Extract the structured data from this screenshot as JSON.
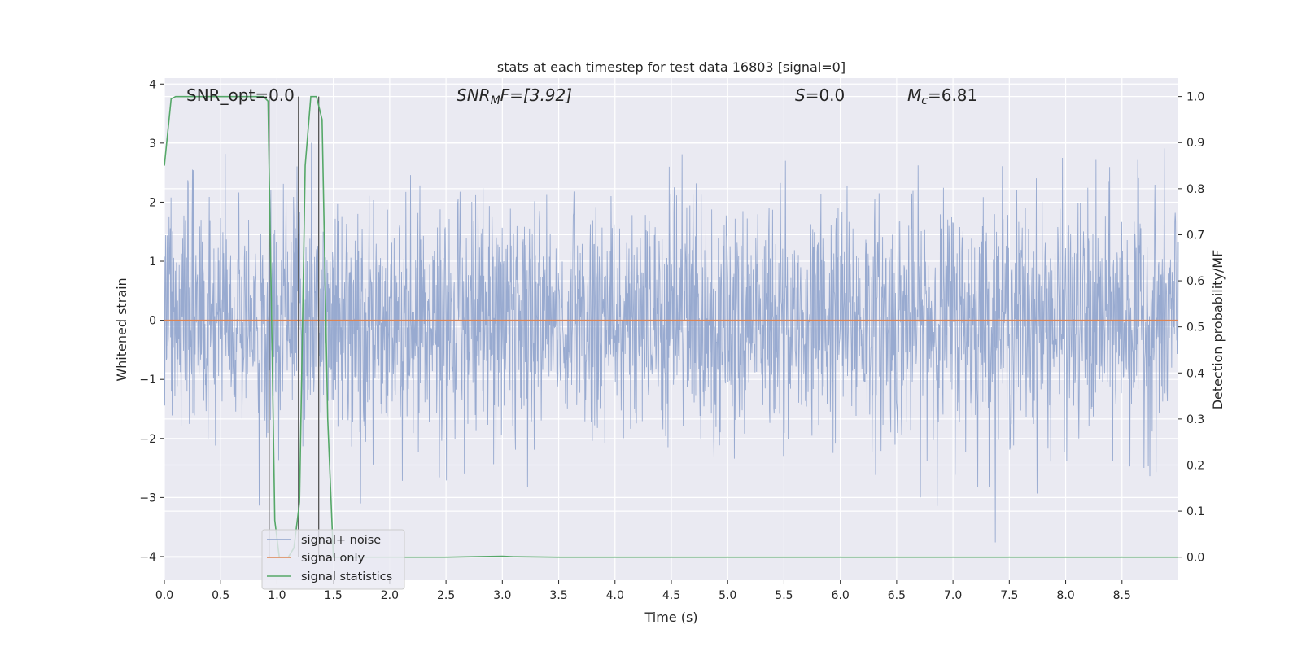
{
  "chart_data": {
    "type": "line",
    "title": "stats at each timestep for test data 16803 [signal=0]",
    "xlabel": "Time (s)",
    "ylabel": "Whitened strain",
    "y2label": "Detection probability/MF",
    "xlim": [
      0.0,
      9.0
    ],
    "ylim": [
      -4.4,
      4.1
    ],
    "y2lim": [
      -0.05,
      1.04
    ],
    "x_ticks": [
      "0.0",
      "0.5",
      "1.0",
      "1.5",
      "2.0",
      "2.5",
      "3.0",
      "3.5",
      "4.0",
      "4.5",
      "5.0",
      "5.5",
      "6.0",
      "6.5",
      "7.0",
      "7.5",
      "8.0",
      "8.5"
    ],
    "y_ticks": [
      "4",
      "3",
      "2",
      "1",
      "0",
      "−1",
      "−2",
      "−3",
      "−4"
    ],
    "y2_ticks": [
      "1.0",
      "0.9",
      "0.8",
      "0.7",
      "0.6",
      "0.5",
      "0.4",
      "0.3",
      "0.2",
      "0.1",
      "0.0"
    ],
    "grid": true,
    "legend_position": "lower-left",
    "series": [
      {
        "name": "signal+ noise",
        "color": "#8fa3cc",
        "kind": "noise-strain",
        "sigma": 1.0,
        "range": [
          -4.0,
          3.8
        ]
      },
      {
        "name": "signal only",
        "color": "#dd8452",
        "x": [
          0.0,
          9.0
        ],
        "y": [
          0.0,
          0.0
        ]
      },
      {
        "name": "signal statistics",
        "color": "#55a868",
        "axis": "right",
        "x": [
          0.0,
          0.06,
          0.1,
          0.2,
          0.4,
          0.6,
          0.8,
          0.88,
          0.92,
          0.95,
          0.98,
          1.02,
          1.06,
          1.1,
          1.15,
          1.2,
          1.25,
          1.3,
          1.35,
          1.4,
          1.45,
          1.5,
          2.0,
          2.5,
          3.0,
          3.1,
          3.5,
          4.0,
          5.0,
          6.0,
          7.0,
          8.0,
          9.0
        ],
        "y": [
          0.85,
          0.995,
          1.0,
          1.0,
          1.0,
          1.0,
          1.0,
          1.0,
          0.99,
          0.55,
          0.08,
          0.0,
          0.0,
          0.0,
          0.02,
          0.12,
          0.85,
          1.0,
          1.0,
          0.95,
          0.3,
          0.0,
          0.0,
          0.0,
          0.002,
          0.001,
          0.0,
          0.0,
          0.0,
          0.0,
          0.0,
          0.0,
          0.0
        ]
      }
    ],
    "vlines_x": [
      0.93,
      1.19,
      1.37
    ],
    "vline_color": "#555555"
  },
  "annotations": {
    "snr_opt": "SNR_opt=0.0",
    "snr_mf_base": "SNR",
    "snr_mf_sub": "M",
    "snr_mf_rest": "F=[3.92]",
    "s_var": "S",
    "s_rest": "=0.0",
    "mc_var": "M",
    "mc_sub": "c",
    "mc_rest": "=6.81"
  },
  "legend": {
    "items": [
      "signal+ noise",
      "signal only",
      "signal statistics"
    ]
  },
  "colors": {
    "plot_bg": "#eaeaf2",
    "grid": "#ffffff"
  }
}
